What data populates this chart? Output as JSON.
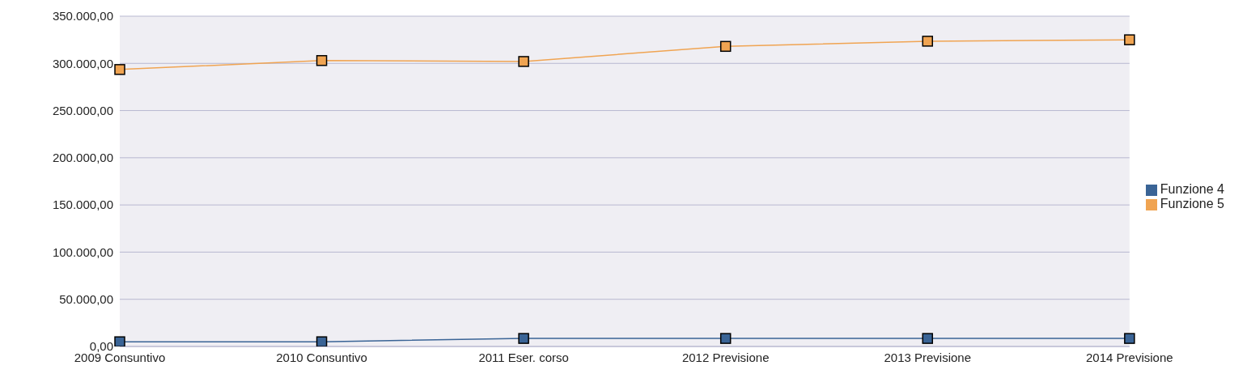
{
  "chart_data": {
    "type": "line",
    "categories": [
      "2009 Consuntivo",
      "2010 Consuntivo",
      "2011 Eser. corso",
      "2012 Previsione",
      "2013 Previsione",
      "2014 Previsione"
    ],
    "series": [
      {
        "name": "Funzione 4",
        "color": "#3a6496",
        "values": [
          5000,
          5000,
          8500,
          8500,
          8500,
          8500
        ]
      },
      {
        "name": "Funzione 5",
        "color": "#f0a452",
        "values": [
          293500,
          303000,
          302000,
          318000,
          323500,
          325000
        ]
      }
    ],
    "ylim": [
      0,
      350000
    ],
    "yticks": [
      {
        "value": 0,
        "label": "0,00"
      },
      {
        "value": 50000,
        "label": "50.000,00"
      },
      {
        "value": 100000,
        "label": "100.000,00"
      },
      {
        "value": 150000,
        "label": "150.000,00"
      },
      {
        "value": 200000,
        "label": "200.000,00"
      },
      {
        "value": 250000,
        "label": "250.000,00"
      },
      {
        "value": 300000,
        "label": "300.000,00"
      },
      {
        "value": 350000,
        "label": "350.000,00"
      }
    ],
    "grid": "y",
    "legend": "right",
    "marker": "square"
  }
}
